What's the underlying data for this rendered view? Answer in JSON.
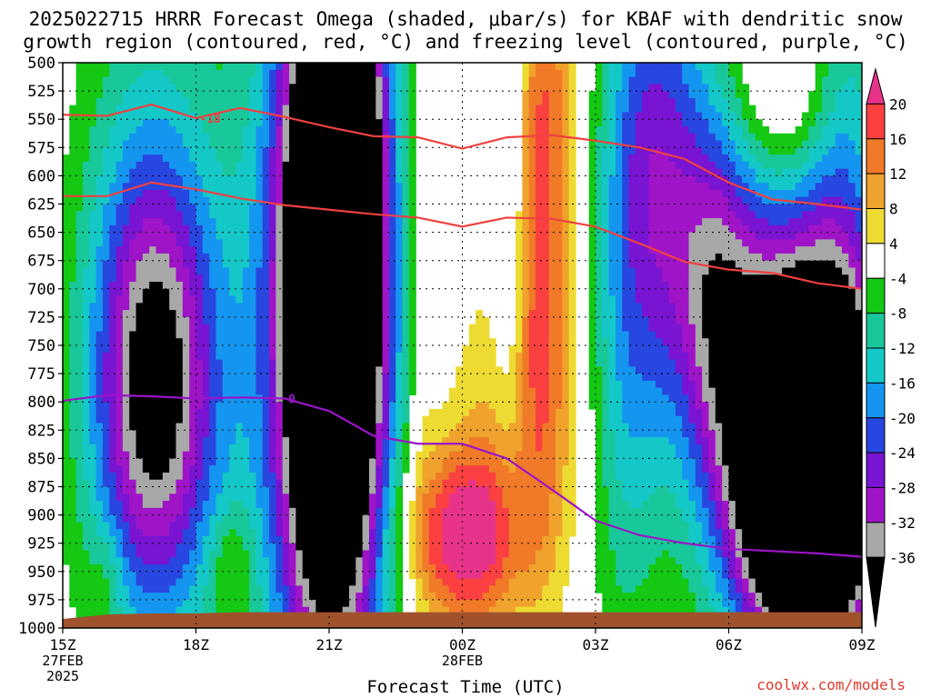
{
  "title": {
    "line1": "2025022715 HRRR Forecast Omega (shaded, μbar/s) for KBAF with dendritic snow",
    "line2": "growth region (contoured, red, °C) and freezing level (contoured, purple, °C)"
  },
  "credit": "coolwx.com/models",
  "chart_data": {
    "type": "heatmap",
    "xlabel": "Forecast Time (UTC)",
    "ylabel": "",
    "x_ticks": [
      {
        "label": "15Z",
        "sub": [
          "27FEB",
          "2025"
        ],
        "t": 0
      },
      {
        "label": "18Z",
        "sub": [],
        "t": 3
      },
      {
        "label": "21Z",
        "sub": [],
        "t": 6
      },
      {
        "label": "00Z",
        "sub": [
          "28FEB"
        ],
        "t": 9
      },
      {
        "label": "03Z",
        "sub": [],
        "t": 12
      },
      {
        "label": "06Z",
        "sub": [],
        "t": 15
      },
      {
        "label": "09Z",
        "sub": [],
        "t": 18
      }
    ],
    "xlim": [
      0,
      18
    ],
    "ylim_hpa": [
      1000,
      500
    ],
    "y_ticks": [
      500,
      525,
      550,
      575,
      600,
      625,
      650,
      675,
      700,
      725,
      750,
      775,
      800,
      825,
      850,
      875,
      900,
      925,
      950,
      975,
      1000
    ],
    "colorbar": {
      "ticks": [
        20,
        16,
        12,
        8,
        4,
        -4,
        -8,
        -12,
        -16,
        -20,
        -24,
        -28,
        -32,
        -36
      ],
      "bins": [
        {
          "lo": 20,
          "hi": 24,
          "color": "#e8338a"
        },
        {
          "lo": 16,
          "hi": 20,
          "color": "#fa4040"
        },
        {
          "lo": 12,
          "hi": 16,
          "color": "#f07a28"
        },
        {
          "lo": 8,
          "hi": 12,
          "color": "#f0a32c"
        },
        {
          "lo": 4,
          "hi": 8,
          "color": "#eddb32"
        },
        {
          "lo": -4,
          "hi": 4,
          "color": "#ffffff"
        },
        {
          "lo": -8,
          "hi": -4,
          "color": "#14c814"
        },
        {
          "lo": -12,
          "hi": -8,
          "color": "#19c89a"
        },
        {
          "lo": -16,
          "hi": -12,
          "color": "#14c8c8"
        },
        {
          "lo": -20,
          "hi": -16,
          "color": "#1496f0"
        },
        {
          "lo": -24,
          "hi": -20,
          "color": "#2846e0"
        },
        {
          "lo": -28,
          "hi": -24,
          "color": "#7814d2"
        },
        {
          "lo": -32,
          "hi": -28,
          "color": "#a014c8"
        },
        {
          "lo": -36,
          "hi": -32,
          "color": "#a8a8a8"
        },
        {
          "lo": -40,
          "hi": -36,
          "color": "#000000"
        }
      ]
    },
    "contours": [
      {
        "name": "-18",
        "color": "#f04040",
        "label_at_t": 3,
        "points": [
          [
            0,
            546
          ],
          [
            1,
            547
          ],
          [
            2,
            537
          ],
          [
            3,
            549
          ],
          [
            4,
            540
          ],
          [
            5,
            548
          ],
          [
            6,
            557
          ],
          [
            7,
            565
          ],
          [
            8,
            566
          ],
          [
            9,
            576
          ],
          [
            10,
            566
          ],
          [
            11,
            564
          ],
          [
            12,
            569
          ],
          [
            13,
            575
          ],
          [
            14,
            585
          ],
          [
            15,
            606
          ],
          [
            16,
            621
          ],
          [
            17,
            625
          ],
          [
            18,
            630
          ]
        ]
      },
      {
        "name": "",
        "color": "#f04040",
        "points": [
          [
            0,
            618
          ],
          [
            1,
            618
          ],
          [
            2,
            606
          ],
          [
            3,
            612
          ],
          [
            4,
            620
          ],
          [
            5,
            626
          ],
          [
            6,
            630
          ],
          [
            7,
            634
          ],
          [
            8,
            637
          ],
          [
            9,
            645
          ],
          [
            10,
            637
          ],
          [
            11,
            638
          ],
          [
            12,
            645
          ],
          [
            13,
            660
          ],
          [
            14,
            676
          ],
          [
            15,
            683
          ],
          [
            16,
            686
          ],
          [
            17,
            695
          ],
          [
            18,
            700
          ]
        ]
      },
      {
        "name": "0",
        "color": "#9b14c8",
        "label_at_t": 5,
        "points": [
          [
            0,
            799
          ],
          [
            1,
            794
          ],
          [
            2,
            795
          ],
          [
            3,
            797
          ],
          [
            4,
            796
          ],
          [
            5,
            797
          ],
          [
            6,
            808
          ],
          [
            7,
            830
          ],
          [
            8,
            837
          ],
          [
            9,
            837
          ],
          [
            10,
            850
          ],
          [
            11,
            877
          ],
          [
            12,
            905
          ],
          [
            13,
            918
          ],
          [
            14,
            925
          ],
          [
            15,
            930
          ],
          [
            16,
            932
          ],
          [
            17,
            934
          ],
          [
            18,
            937
          ]
        ]
      }
    ],
    "terrain": {
      "color": "#a0522d",
      "surface_hpa": [
        992,
        988,
        987,
        987,
        986,
        986,
        986,
        986,
        986,
        986,
        986,
        986,
        986,
        986,
        986,
        986,
        986,
        986,
        986
      ]
    }
  }
}
